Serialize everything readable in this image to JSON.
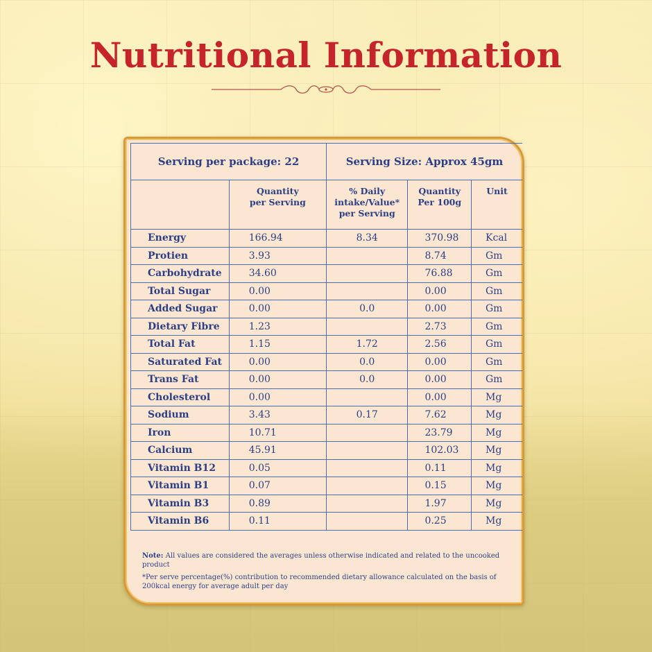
{
  "title": "Nutritional Information",
  "header": {
    "serving_per_package": "Serving per package: 22",
    "serving_size": "Serving Size: Approx 45gm"
  },
  "columns": {
    "qty_per_serving": "Quantity\nper Serving",
    "daily_intake": "% Daily\nintake/Value*\nper Serving",
    "qty_per_100g": "Quantity\nPer 100g",
    "unit": "Unit"
  },
  "rows": [
    {
      "name": "Energy",
      "per_serving": "166.94",
      "daily": "8.34",
      "per_100g": "370.98",
      "unit": "Kcal"
    },
    {
      "name": "Protien",
      "per_serving": "3.93",
      "daily": "",
      "per_100g": "8.74",
      "unit": "Gm"
    },
    {
      "name": "Carbohydrate",
      "per_serving": "34.60",
      "daily": "",
      "per_100g": "76.88",
      "unit": "Gm"
    },
    {
      "name": "Total Sugar",
      "per_serving": "0.00",
      "daily": "",
      "per_100g": "0.00",
      "unit": "Gm"
    },
    {
      "name": "Added Sugar",
      "per_serving": "0.00",
      "daily": "0.0",
      "per_100g": "0.00",
      "unit": "Gm"
    },
    {
      "name": "Dietary Fibre",
      "per_serving": "1.23",
      "daily": "",
      "per_100g": "2.73",
      "unit": "Gm"
    },
    {
      "name": "Total Fat",
      "per_serving": "1.15",
      "daily": "1.72",
      "per_100g": "2.56",
      "unit": "Gm"
    },
    {
      "name": "Saturated Fat",
      "per_serving": "0.00",
      "daily": "0.0",
      "per_100g": "0.00",
      "unit": "Gm"
    },
    {
      "name": "Trans Fat",
      "per_serving": "0.00",
      "daily": "0.0",
      "per_100g": "0.00",
      "unit": "Gm"
    },
    {
      "name": "Cholesterol",
      "per_serving": "0.00",
      "daily": "",
      "per_100g": "0.00",
      "unit": "Mg"
    },
    {
      "name": "Sodium",
      "per_serving": "3.43",
      "daily": "0.17",
      "per_100g": "7.62",
      "unit": "Mg"
    },
    {
      "name": "Iron",
      "per_serving": "10.71",
      "daily": "",
      "per_100g": "23.79",
      "unit": "Mg"
    },
    {
      "name": "Calcium",
      "per_serving": "45.91",
      "daily": "",
      "per_100g": "102.03",
      "unit": "Mg"
    },
    {
      "name": "Vitamin B12",
      "per_serving": "0.05",
      "daily": "",
      "per_100g": "0.11",
      "unit": "Mg"
    },
    {
      "name": "Vitamin B1",
      "per_serving": "0.07",
      "daily": "",
      "per_100g": "0.15",
      "unit": "Mg"
    },
    {
      "name": "Vitamin B3",
      "per_serving": "0.89",
      "daily": "",
      "per_100g": "1.97",
      "unit": "Mg"
    },
    {
      "name": "Vitamin B6",
      "per_serving": "0.11",
      "daily": "",
      "per_100g": "0.25",
      "unit": "Mg"
    }
  ],
  "notes": {
    "note_label": "Note:",
    "note_text": " All values are considered the averages unless otherwise indicated and related to the uncooked product",
    "footnote": "*Per serve percentage(%) contribution to recommended dietary allowance calculated on the basis of 200kcal energy for average adult per day"
  },
  "colors": {
    "title": "#c6242b",
    "table_text": "#2c3f86",
    "table_lines": "#4e6bb0",
    "card_bg": "#fbe6d2",
    "card_border": "#d59a3a",
    "ornament": "#b8514e"
  }
}
